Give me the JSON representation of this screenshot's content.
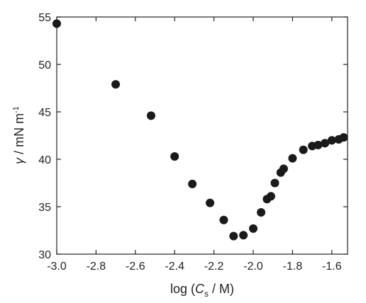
{
  "chart_data": {
    "type": "scatter",
    "title": "",
    "xlabel": {
      "prefix": "log (",
      "var": "C",
      "subscript": "s",
      "suffix": " / M)"
    },
    "ylabel": {
      "symbol": "γ",
      "unit": " / mN m",
      "superscript": "-1"
    },
    "xlim": [
      -3.0,
      -1.52
    ],
    "ylim": [
      30,
      55
    ],
    "x_ticks": [
      -3.0,
      -2.8,
      -2.6,
      -2.4,
      -2.2,
      -2.0,
      -1.8,
      -1.6
    ],
    "x_tick_labels": [
      "-3.0",
      "-2.8",
      "-2.6",
      "-2.4",
      "-2.2",
      "-2.0",
      "-1.8",
      "-1.6"
    ],
    "y_ticks": [
      30,
      35,
      40,
      45,
      50,
      55
    ],
    "y_tick_labels": [
      "30",
      "35",
      "40",
      "45",
      "50",
      "55"
    ],
    "grid": false,
    "marker_color": "#1a1a1a",
    "points": [
      {
        "x": -3.0,
        "y": 54.3
      },
      {
        "x": -2.7,
        "y": 47.9
      },
      {
        "x": -2.52,
        "y": 44.6
      },
      {
        "x": -2.4,
        "y": 40.3
      },
      {
        "x": -2.31,
        "y": 37.4
      },
      {
        "x": -2.22,
        "y": 35.4
      },
      {
        "x": -2.15,
        "y": 33.6
      },
      {
        "x": -2.1,
        "y": 31.9
      },
      {
        "x": -2.05,
        "y": 32.0
      },
      {
        "x": -2.0,
        "y": 32.7
      },
      {
        "x": -1.96,
        "y": 34.4
      },
      {
        "x": -1.93,
        "y": 35.8
      },
      {
        "x": -1.91,
        "y": 36.1
      },
      {
        "x": -1.89,
        "y": 37.5
      },
      {
        "x": -1.86,
        "y": 38.6
      },
      {
        "x": -1.845,
        "y": 39.0
      },
      {
        "x": -1.8,
        "y": 40.1
      },
      {
        "x": -1.745,
        "y": 41.0
      },
      {
        "x": -1.7,
        "y": 41.4
      },
      {
        "x": -1.67,
        "y": 41.5
      },
      {
        "x": -1.635,
        "y": 41.7
      },
      {
        "x": -1.6,
        "y": 42.0
      },
      {
        "x": -1.565,
        "y": 42.1
      },
      {
        "x": -1.54,
        "y": 42.3
      }
    ]
  }
}
